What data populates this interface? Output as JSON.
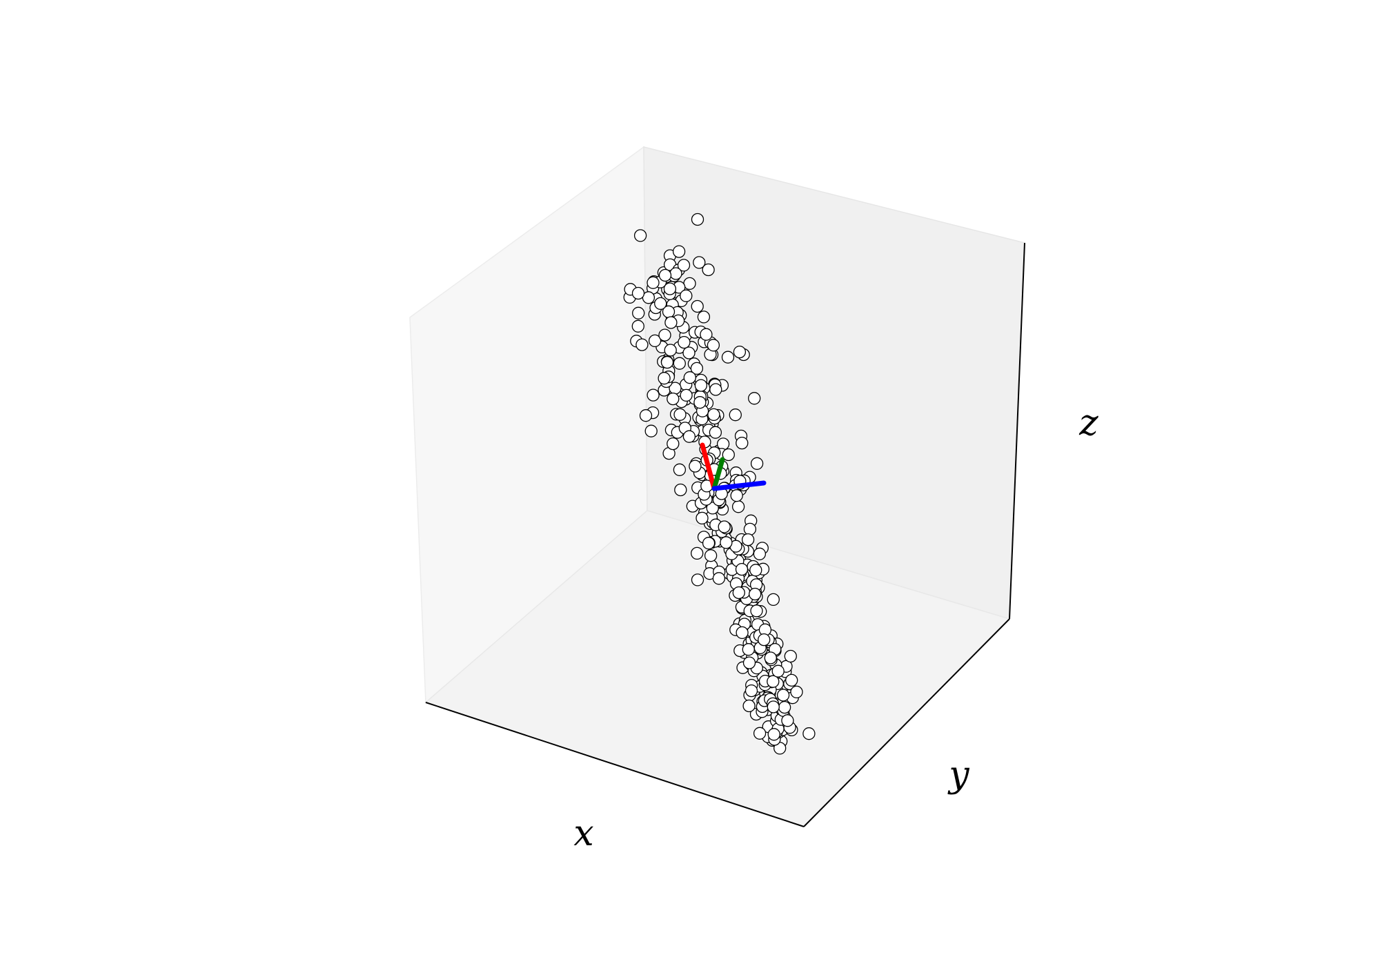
{
  "chart_data": {
    "type": "scatter",
    "projection": "3d",
    "title": "",
    "xlabel": "x",
    "ylabel": "y",
    "zlabel": "z",
    "ticks": false,
    "grid": false,
    "marker": {
      "face_color": "#ffffff",
      "edge_color": "#000000",
      "shape": "circle"
    },
    "pane_colors": {
      "left": "#f7f7f7",
      "back": "#f0f0f0",
      "floor": "#f3f3f3"
    },
    "principal_axes": [
      {
        "color": "#ff0000"
      },
      {
        "color": "#008000"
      },
      {
        "color": "#0000ff"
      }
    ],
    "point_count": 400
  }
}
